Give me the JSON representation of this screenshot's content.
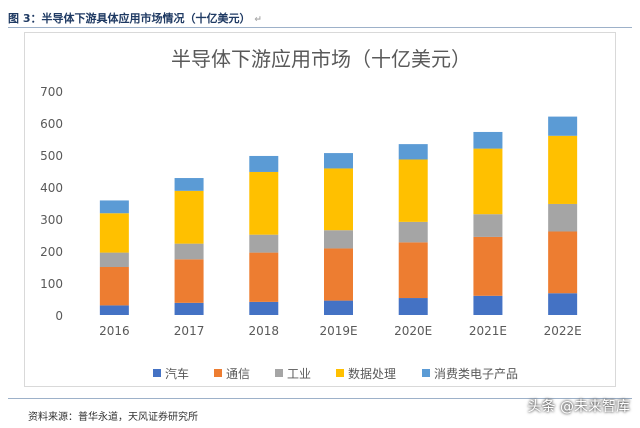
{
  "caption": "图 3：半导体下游具体应用市场情况（十亿美元）",
  "source": "资料来源：普华永道，天风证券研究所",
  "watermark": "头条 @未来智库",
  "return_mark": "↵",
  "chart_data": {
    "type": "bar",
    "stacked": true,
    "title": "半导体下游应用市场（十亿美元）",
    "categories": [
      "2016",
      "2017",
      "2018",
      "2019E",
      "2020E",
      "2021E",
      "2022E"
    ],
    "ylim": [
      0,
      700
    ],
    "yticks": [
      0,
      100,
      200,
      300,
      400,
      500,
      600,
      700
    ],
    "xlabel": "",
    "ylabel": "",
    "grid": false,
    "legend_position": "bottom",
    "series": [
      {
        "name": "汽车",
        "color": "#4472c4",
        "values": [
          30,
          38,
          41,
          45,
          53,
          60,
          68
        ]
      },
      {
        "name": "通信",
        "color": "#ed7d31",
        "values": [
          120,
          136,
          154,
          163,
          174,
          184,
          193
        ]
      },
      {
        "name": "工业",
        "color": "#a5a5a5",
        "values": [
          45,
          49,
          56,
          57,
          64,
          71,
          86
        ]
      },
      {
        "name": "数据处理",
        "color": "#ffc000",
        "values": [
          123,
          165,
          196,
          193,
          195,
          205,
          213
        ]
      },
      {
        "name": "消费类电子产品",
        "color": "#5b9bd5",
        "values": [
          40,
          40,
          50,
          48,
          48,
          52,
          60
        ]
      }
    ]
  }
}
